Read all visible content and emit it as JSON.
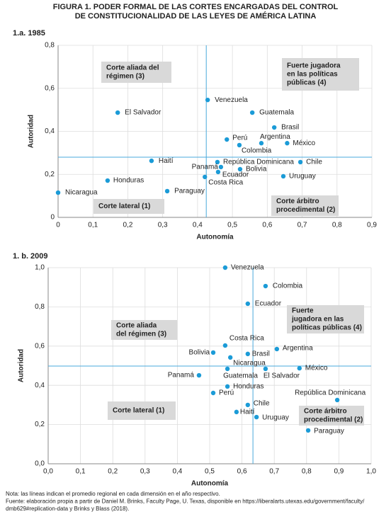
{
  "title": [
    "FIGURA 1. PODER FORMAL DE LAS CORTES ENCARGADAS DEL CONTROL",
    "DE CONSTITUCIONALIDAD DE LAS LEYES DE AMÉRICA LATINA"
  ],
  "notes": [
    "Nota: las líneas indican el promedio regional en cada dimensión en el año respectivo.",
    "Fuente: elaboración propia a partir de Daniel M. Brinks, Faculty Page, U. Texas, disponible en https://liberalarts.utexas.edu/government/faculty/",
    "dmb629#replication-data y Brinks y Blass (2018)."
  ],
  "chart_data": [
    {
      "type": "scatter",
      "title": "1.a. 1985",
      "xlabel": "Autonomía",
      "ylabel": "Autoridad",
      "color": "#1b9bd7",
      "line_color": "#4aa9dc",
      "grid": true,
      "xlim": [
        0,
        0.9
      ],
      "ylim": [
        0,
        0.8
      ],
      "xticks": [
        0,
        {
          "value": 0.1,
          "label": "0,1"
        },
        {
          "value": 0.2,
          "label": "0,2"
        },
        {
          "value": 0.3,
          "label": "0,3"
        },
        {
          "value": 0.4,
          "label": "0,4"
        },
        {
          "value": 0.5,
          "label": "0,5"
        },
        {
          "value": 0.6,
          "label": "0,6"
        },
        {
          "value": 0.7,
          "label": "0,7"
        },
        {
          "value": 0.8,
          "label": "0,8"
        },
        {
          "value": 0.9,
          "label": "0,9"
        }
      ],
      "yticks": [
        0,
        {
          "value": 0.2,
          "label": "0,2"
        },
        {
          "value": 0.4,
          "label": "0,4"
        },
        {
          "value": 0.6,
          "label": "0,6"
        },
        {
          "value": 0.8,
          "label": "0,8"
        }
      ],
      "point_labels": [
        "Venezuela",
        "El Salvador",
        "Guatemala",
        "Brasil",
        "Perú",
        "Argentina",
        "México",
        "Colombia",
        "Haití",
        "República Dominicana",
        "Chile",
        "Panamá",
        "Bolivia",
        "Ecuador",
        "Costa Rica",
        "Uruguay",
        "Honduras",
        "Paraguay",
        "Nicaragua"
      ],
      "x": [
        0.429,
        0.171,
        0.557,
        0.62,
        0.484,
        0.583,
        0.657,
        0.52,
        0.268,
        0.457,
        0.695,
        0.467,
        0.522,
        0.459,
        0.421,
        0.646,
        0.142,
        0.313,
        0.0
      ],
      "y": [
        0.546,
        0.487,
        0.487,
        0.418,
        0.362,
        0.345,
        0.345,
        0.336,
        0.263,
        0.257,
        0.257,
        0.234,
        0.224,
        0.211,
        0.188,
        0.191,
        0.171,
        0.122,
        0.115
      ],
      "averages": {
        "x": 0.425,
        "y": 0.28
      },
      "quadrant_labels": [
        [
          "Corte aliada del",
          "régimen (3)"
        ],
        [
          "Fuerte jugadora",
          "en las políticas",
          "públicas (4)"
        ],
        [
          "Corte lateral (1)"
        ],
        [
          "Corte árbitro",
          "procedimental (2)"
        ]
      ]
    },
    {
      "type": "scatter",
      "title": "1. b. 2009",
      "xlabel": "Autonomía",
      "ylabel": "Autoridad",
      "color": "#1b9bd7",
      "line_color": "#4aa9dc",
      "grid": true,
      "xlim": [
        0,
        1
      ],
      "ylim": [
        0,
        1
      ],
      "xticks": [
        {
          "value": 0,
          "label": "0,0"
        },
        {
          "value": 0.1,
          "label": "0,1"
        },
        {
          "value": 0.2,
          "label": "0,2"
        },
        {
          "value": 0.3,
          "label": "0,3"
        },
        {
          "value": 0.4,
          "label": "0,4"
        },
        {
          "value": 0.5,
          "label": "0,5"
        },
        {
          "value": 0.6,
          "label": "0,6"
        },
        {
          "value": 0.7,
          "label": "0,7"
        },
        {
          "value": 0.8,
          "label": "0,8"
        },
        {
          "value": 0.9,
          "label": "0,9"
        },
        {
          "value": 1,
          "label": "1,0"
        }
      ],
      "yticks": [
        {
          "value": 0,
          "label": "0,0"
        },
        {
          "value": 0.2,
          "label": "0,2"
        },
        {
          "value": 0.4,
          "label": "0,4"
        },
        {
          "value": 0.6,
          "label": "0,6"
        },
        {
          "value": 0.8,
          "label": "0,8"
        },
        {
          "value": 1,
          "label": "1,0"
        }
      ],
      "point_labels": [
        "Venezuela",
        "Colombia",
        "Ecuador",
        "Costa Rica",
        "Argentina",
        "Bolivia",
        "Brasil",
        "Nicaragua",
        "México",
        "Guatemala",
        "El Salvador",
        "Panamá",
        "Honduras",
        "Perú",
        "República Dominicana",
        "Chile",
        "Haití",
        "Uruguay",
        "Paraguay"
      ],
      "x": [
        0.548,
        0.673,
        0.618,
        0.548,
        0.708,
        0.511,
        0.618,
        0.564,
        0.778,
        0.555,
        0.673,
        0.467,
        0.555,
        0.511,
        0.895,
        0.618,
        0.583,
        0.645,
        0.805
      ],
      "y": [
        1.0,
        0.906,
        0.816,
        0.603,
        0.585,
        0.567,
        0.56,
        0.542,
        0.487,
        0.484,
        0.484,
        0.451,
        0.394,
        0.361,
        0.325,
        0.3,
        0.264,
        0.238,
        0.17
      ],
      "averages": {
        "x": 0.634,
        "y": 0.498
      },
      "quadrant_labels": [
        [
          "Corte aliada",
          "del régimen (3)"
        ],
        [
          "Fuerte",
          "jugadora en las",
          "políticas públicas (4)"
        ],
        [
          "Corte lateral (1)"
        ],
        [
          "Corte árbitro",
          "procedimental (2)"
        ]
      ]
    }
  ]
}
